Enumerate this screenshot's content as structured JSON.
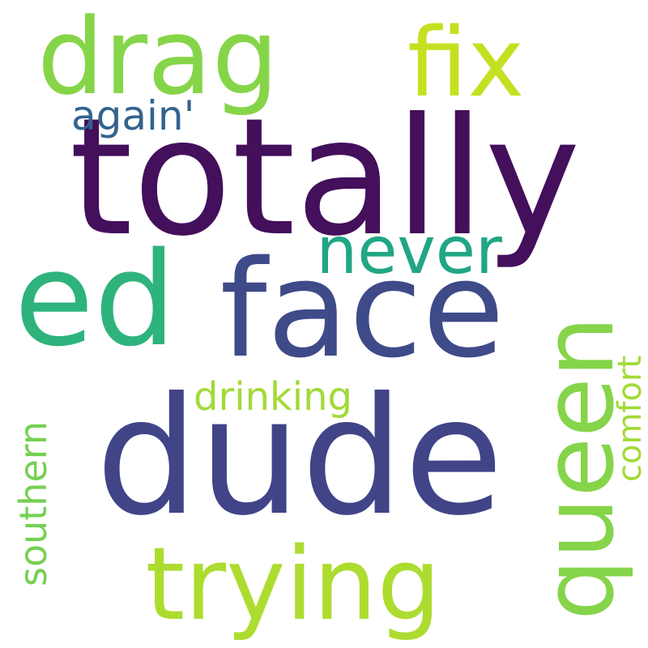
{
  "words": [
    {
      "text": "totally",
      "color": "#440f5b"
    },
    {
      "text": "dude",
      "color": "#414487"
    },
    {
      "text": "face",
      "color": "#3f4a89"
    },
    {
      "text": "ed",
      "color": "#2eb37c"
    },
    {
      "text": "queen",
      "color": "#85d44a"
    },
    {
      "text": "drag",
      "color": "#86d549"
    },
    {
      "text": "fix",
      "color": "#c5e021"
    },
    {
      "text": "trying",
      "color": "#addc30"
    },
    {
      "text": "never",
      "color": "#21a685"
    },
    {
      "text": "again'",
      "color": "#33638d"
    },
    {
      "text": "drinking",
      "color": "#a2da37"
    },
    {
      "text": "comfort",
      "color": "#a2da37"
    },
    {
      "text": "southern",
      "color": "#75d054"
    }
  ]
}
